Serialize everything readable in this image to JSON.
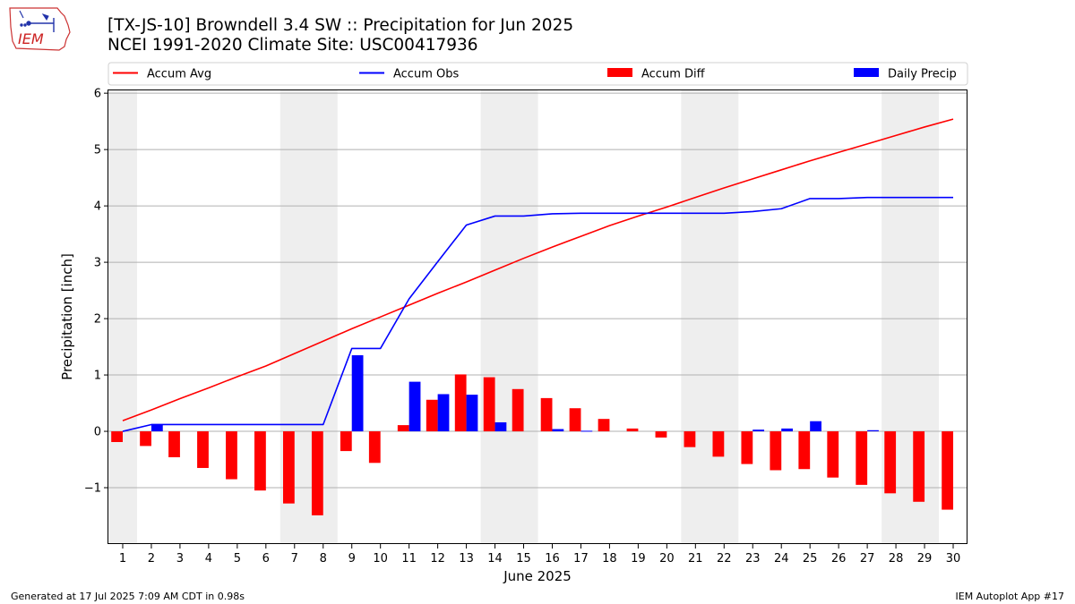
{
  "header": {
    "title_line1": "[TX-JS-10] Browndell 3.4 SW :: Precipitation for Jun 2025",
    "title_line2": "NCEI 1991-2020 Climate Site: USC00417936",
    "logo_text": "IEM"
  },
  "footer": {
    "generated": "Generated at 17 Jul 2025 7:09 AM CDT in 0.98s",
    "app": "IEM Autoplot App #17"
  },
  "chart_data": {
    "type": "bar",
    "xlabel": "June 2025",
    "ylabel": "Precipitation [inch]",
    "xlim": [
      0.5,
      30.5
    ],
    "ylim": [
      -2.0,
      6.05
    ],
    "yticks": [
      -1,
      0,
      1,
      2,
      3,
      4,
      5,
      6
    ],
    "ytick_labels": [
      "−1",
      "0",
      "1",
      "2",
      "3",
      "4",
      "5",
      "6"
    ],
    "grid": "horizontal",
    "legend_position": "top",
    "weekend_bands": [
      [
        1,
        1
      ],
      [
        7,
        8
      ],
      [
        14,
        15
      ],
      [
        21,
        22
      ],
      [
        28,
        29
      ]
    ],
    "days": [
      1,
      2,
      3,
      4,
      5,
      6,
      7,
      8,
      9,
      10,
      11,
      12,
      13,
      14,
      15,
      16,
      17,
      18,
      19,
      20,
      21,
      22,
      23,
      24,
      25,
      26,
      27,
      28,
      29,
      30
    ],
    "series": [
      {
        "name": "Accum Avg",
        "kind": "line",
        "color": "#ff0000",
        "values": [
          0.19,
          0.38,
          0.58,
          0.77,
          0.97,
          1.16,
          1.38,
          1.6,
          1.82,
          2.03,
          2.24,
          2.45,
          2.65,
          2.86,
          3.07,
          3.27,
          3.46,
          3.65,
          3.82,
          3.98,
          4.15,
          4.32,
          4.48,
          4.64,
          4.8,
          4.95,
          5.1,
          5.25,
          5.4,
          5.54
        ]
      },
      {
        "name": "Accum Obs",
        "kind": "line",
        "color": "#0000ff",
        "values": [
          0.0,
          0.12,
          0.12,
          0.12,
          0.12,
          0.12,
          0.12,
          0.12,
          1.47,
          1.47,
          2.35,
          3.01,
          3.66,
          3.82,
          3.82,
          3.86,
          3.87,
          3.87,
          3.87,
          3.87,
          3.87,
          3.87,
          3.9,
          3.95,
          4.13,
          4.13,
          4.15,
          4.15,
          4.15,
          4.15
        ]
      },
      {
        "name": "Accum Diff",
        "kind": "bar",
        "color": "#ff0000",
        "values": [
          -0.19,
          -0.26,
          -0.46,
          -0.65,
          -0.85,
          -1.05,
          -1.28,
          -1.49,
          -0.35,
          -0.56,
          0.11,
          0.56,
          1.01,
          0.96,
          0.75,
          0.59,
          0.41,
          0.22,
          0.05,
          -0.11,
          -0.28,
          -0.45,
          -0.58,
          -0.69,
          -0.67,
          -0.82,
          -0.95,
          -1.1,
          -1.25,
          -1.39
        ]
      },
      {
        "name": "Daily Precip",
        "kind": "bar",
        "color": "#0000ff",
        "values": [
          0.0,
          0.12,
          0.0,
          0.0,
          0.0,
          0.0,
          0.0,
          0.0,
          1.35,
          0.0,
          0.88,
          0.66,
          0.65,
          0.16,
          0.0,
          0.04,
          0.01,
          0.0,
          0.0,
          0.0,
          0.0,
          0.0,
          0.03,
          0.05,
          0.18,
          0.0,
          0.02,
          0.0,
          0.0,
          0.0
        ]
      }
    ]
  }
}
